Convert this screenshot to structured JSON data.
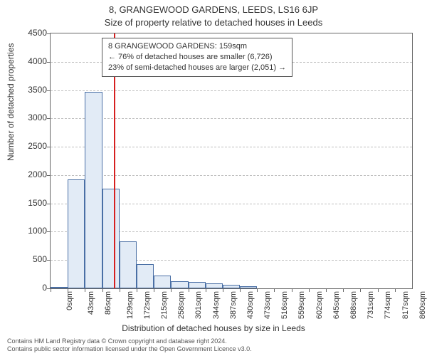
{
  "title_line1": "8, GRANGEWOOD GARDENS, LEEDS, LS16 6JP",
  "title_line2": "Size of property relative to detached houses in Leeds",
  "yaxis_label": "Number of detached properties",
  "xaxis_label": "Distribution of detached houses by size in Leeds",
  "chart": {
    "type": "histogram",
    "ylim": [
      0,
      4500
    ],
    "ytick_step": 500,
    "yticks": [
      0,
      500,
      1000,
      1500,
      2000,
      2500,
      3000,
      3500,
      4000,
      4500
    ],
    "xlim": [
      0,
      903
    ],
    "xticks": [
      0,
      43,
      86,
      129,
      172,
      215,
      258,
      301,
      344,
      387,
      430,
      473,
      516,
      559,
      602,
      645,
      688,
      731,
      774,
      817,
      860
    ],
    "xtick_unit": "sqm",
    "bin_edges": [
      0,
      43,
      86,
      129,
      172,
      215,
      258,
      301,
      344,
      387,
      430,
      473,
      516
    ],
    "values": [
      0,
      1920,
      3470,
      1760,
      830,
      430,
      230,
      130,
      110,
      90,
      60,
      40
    ],
    "bar_fill": "#e2ebf6",
    "bar_edge": "#4a6fa5",
    "grid_color": "#bfbfbf",
    "axis_color": "#666666",
    "background_color": "#ffffff",
    "reference_x": 159,
    "reference_color": "#d62020"
  },
  "annotation": {
    "line1": "8 GRANGEWOOD GARDENS: 159sqm",
    "line2": "← 76% of detached houses are smaller (6,726)",
    "line3": "23% of semi-detached houses are larger (2,051) →"
  },
  "footer_line1": "Contains HM Land Registry data © Crown copyright and database right 2024.",
  "footer_line2": "Contains public sector information licensed under the Open Government Licence v3.0."
}
